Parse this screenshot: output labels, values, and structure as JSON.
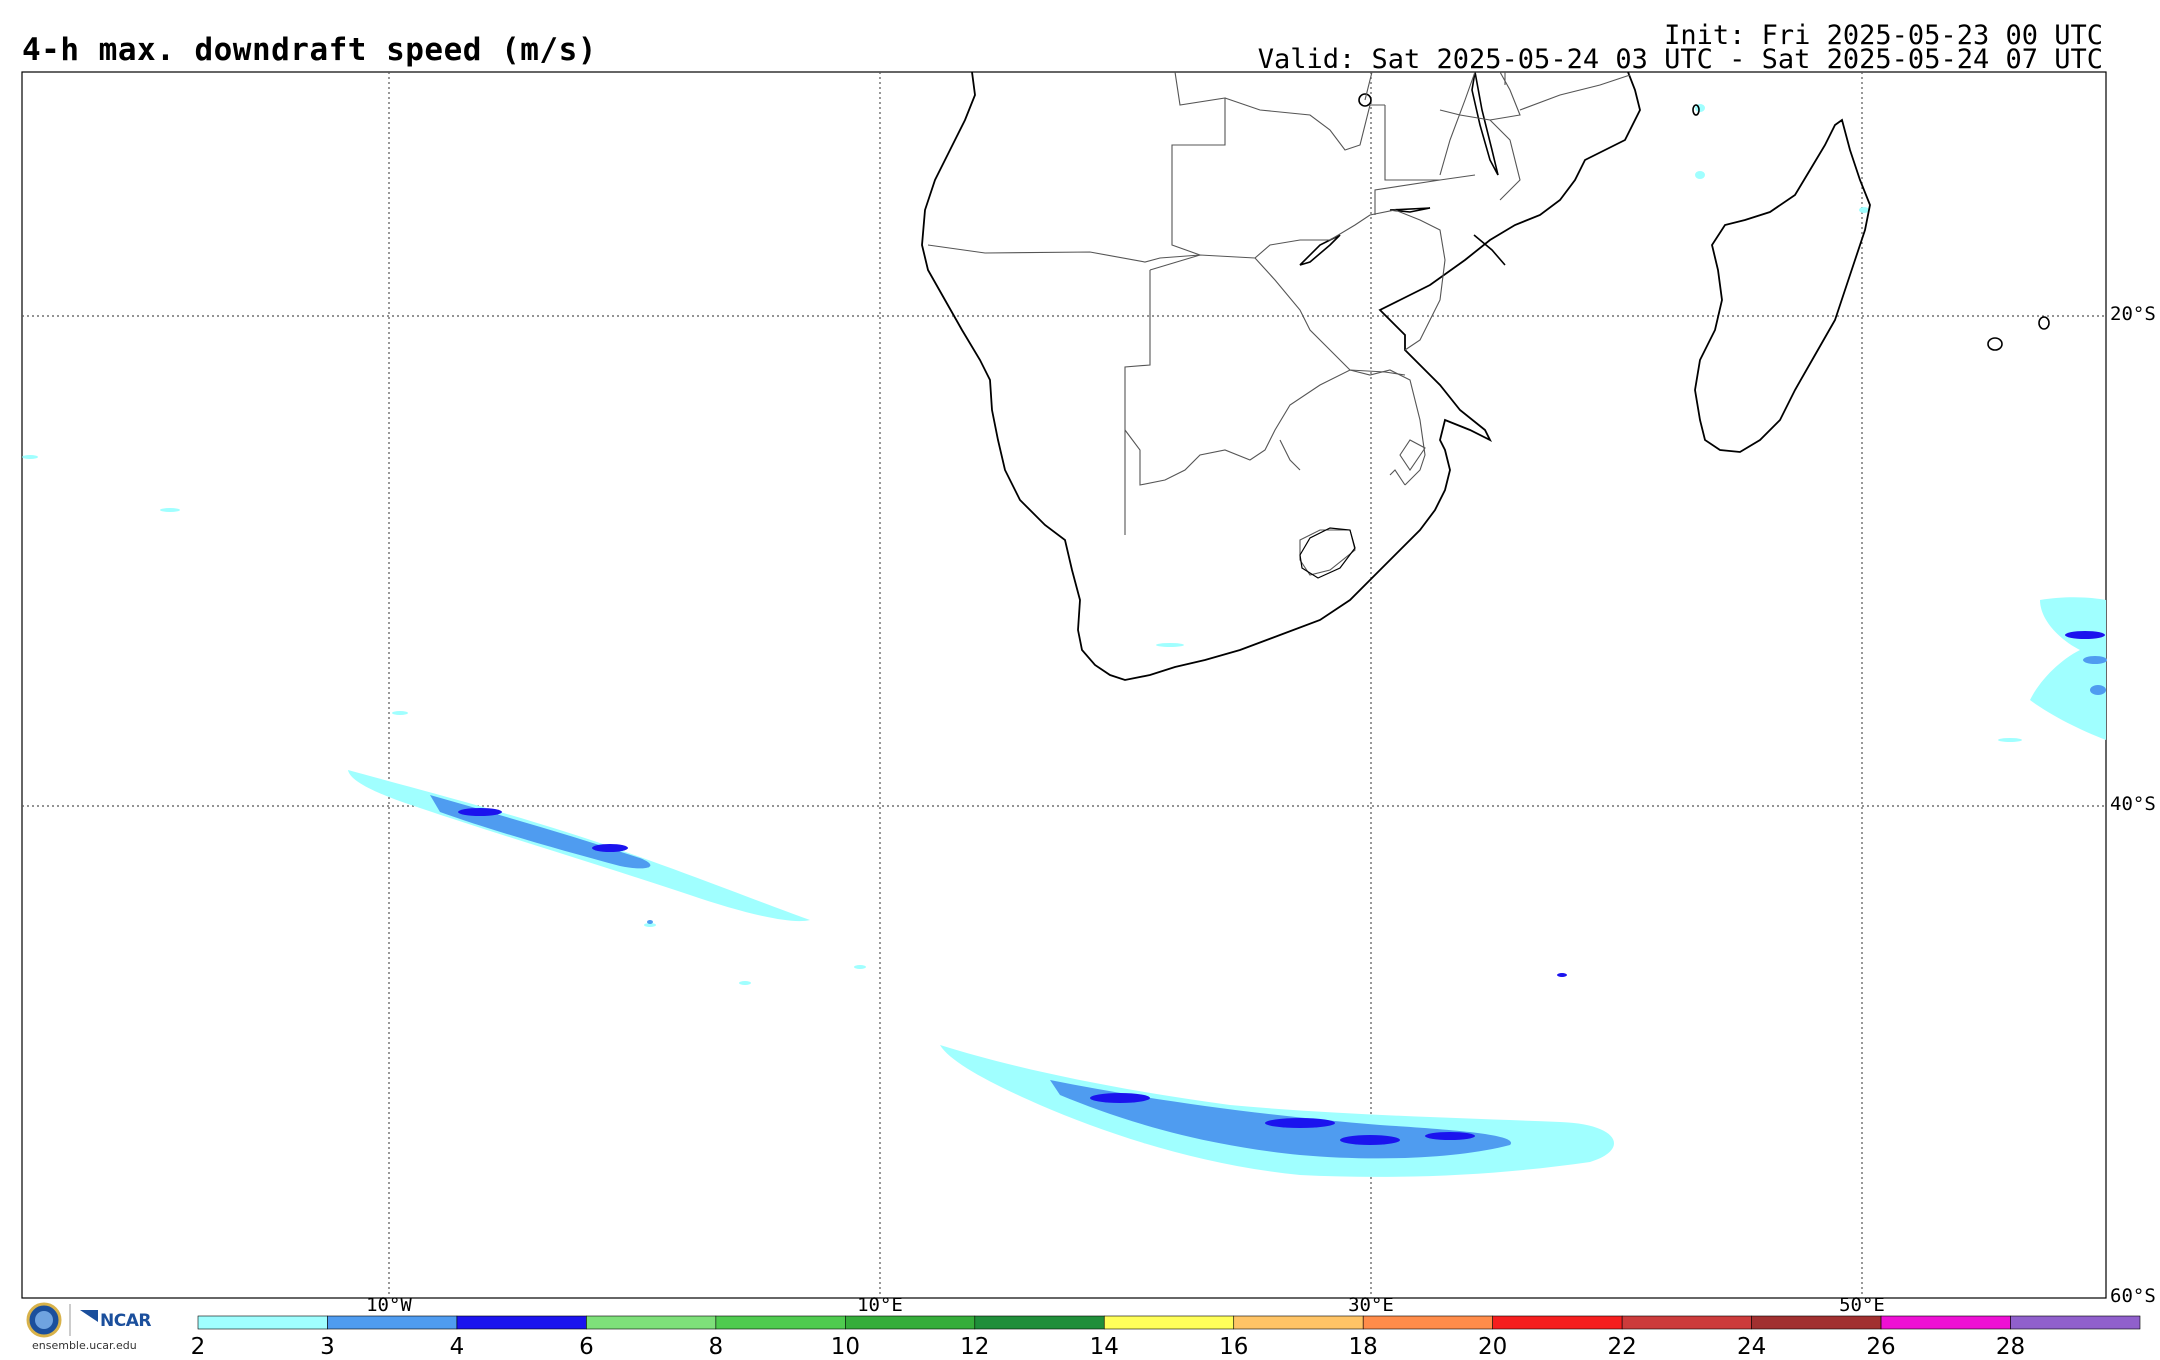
{
  "header": {
    "title": "4-h max. downdraft speed (m/s)",
    "init": "Init: Fri 2025-05-23 00 UTC",
    "valid": "Valid: Sat 2025-05-24 03 UTC - Sat 2025-05-24 07 UTC"
  },
  "map": {
    "lat_labels": [
      "20°S",
      "40°S",
      "60°S"
    ],
    "lon_labels": [
      "10°W",
      "10°E",
      "30°E",
      "50°E"
    ]
  },
  "colorbar": {
    "values": [
      "2",
      "3",
      "4",
      "6",
      "8",
      "10",
      "12",
      "14",
      "16",
      "18",
      "20",
      "22",
      "24",
      "26",
      "28"
    ],
    "colors": [
      "#a0ffff",
      "#4f9cf0",
      "#1b13ee",
      "#7ee07a",
      "#4fcb4f",
      "#35ad3a",
      "#1f8e3a",
      "#ffff5a",
      "#ffc466",
      "#ff8c4a",
      "#f51e1e",
      "#cc3b3b",
      "#a13030",
      "#ee10d4",
      "#9060cc"
    ]
  },
  "branding": {
    "logo_text": "NCAR",
    "url": "ensemble.ucar.edu"
  }
}
